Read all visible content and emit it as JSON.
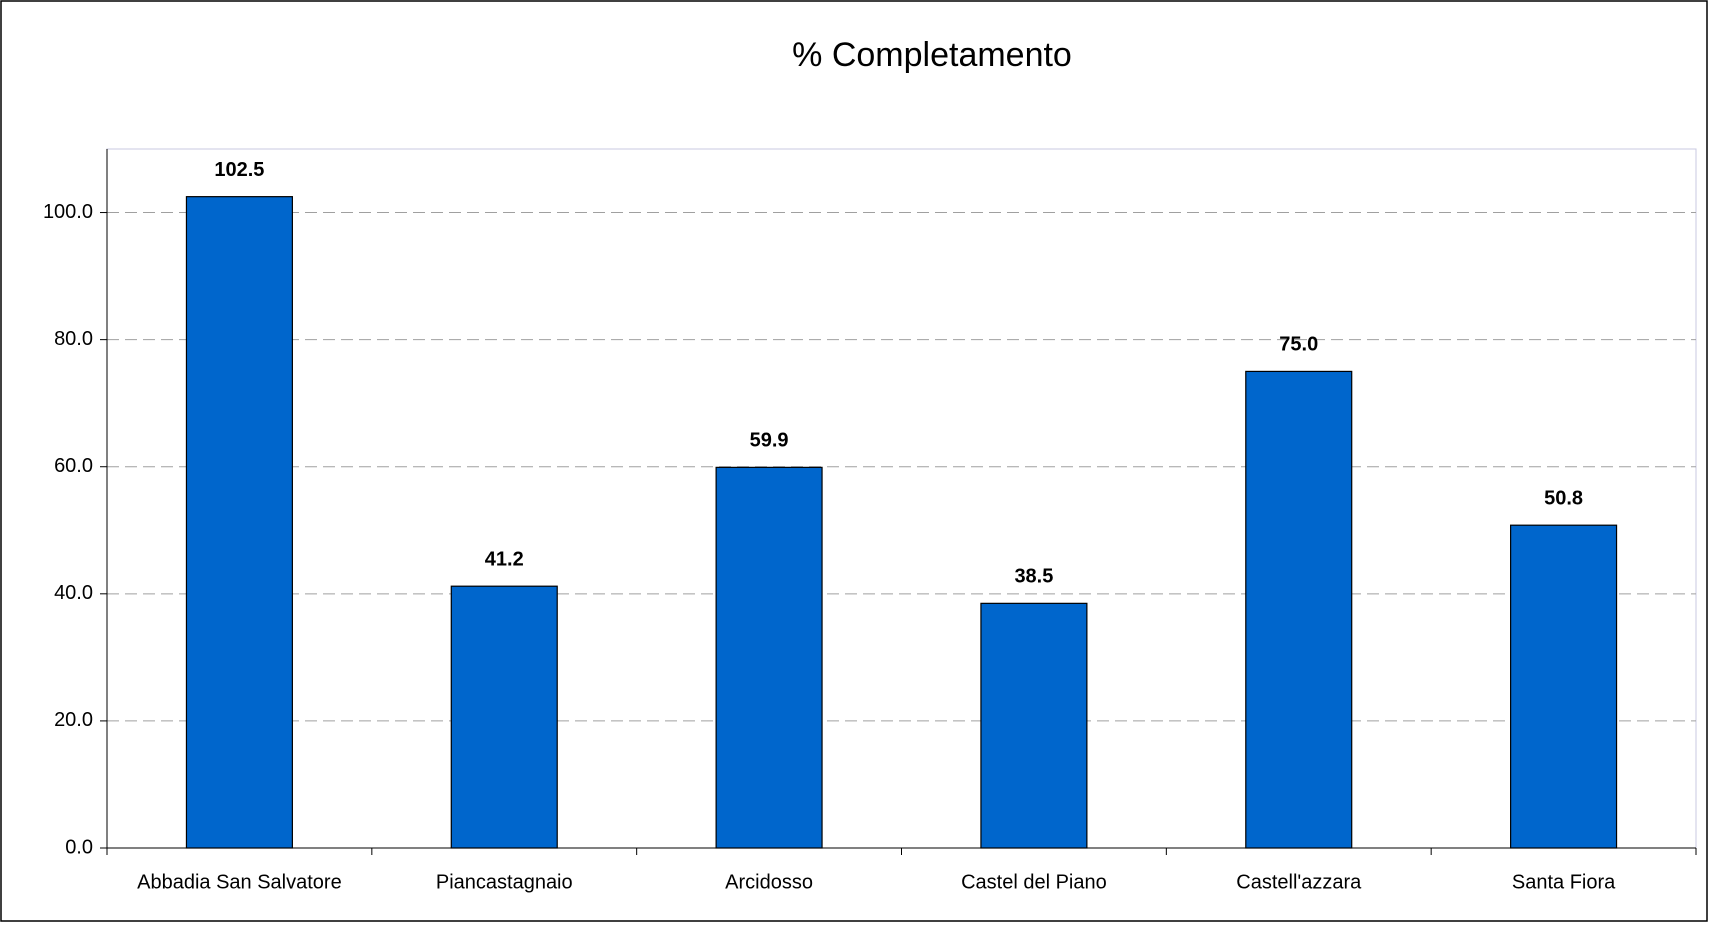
{
  "chart_data": {
    "type": "bar",
    "title": "% Completamento",
    "categories": [
      "Abbadia San Salvatore",
      "Piancastagnaio",
      "Arcidosso",
      "Castel del Piano",
      "Castell'azzara",
      "Santa Fiora"
    ],
    "values": [
      102.5,
      41.2,
      59.9,
      38.5,
      75.0,
      50.8
    ],
    "value_labels": [
      "102.5",
      "41.2",
      "59.9",
      "38.5",
      "75.0",
      "50.8"
    ],
    "color": "#0066cc",
    "ylim": [
      0,
      110
    ],
    "yticks": [
      {
        "value": 0,
        "label": "0.0"
      },
      {
        "value": 20,
        "label": "20.0"
      },
      {
        "value": 40,
        "label": "40.0"
      },
      {
        "value": 60,
        "label": "60.0"
      },
      {
        "value": 80,
        "label": "80.0"
      },
      {
        "value": 100,
        "label": "100.0"
      }
    ],
    "grid": true
  }
}
